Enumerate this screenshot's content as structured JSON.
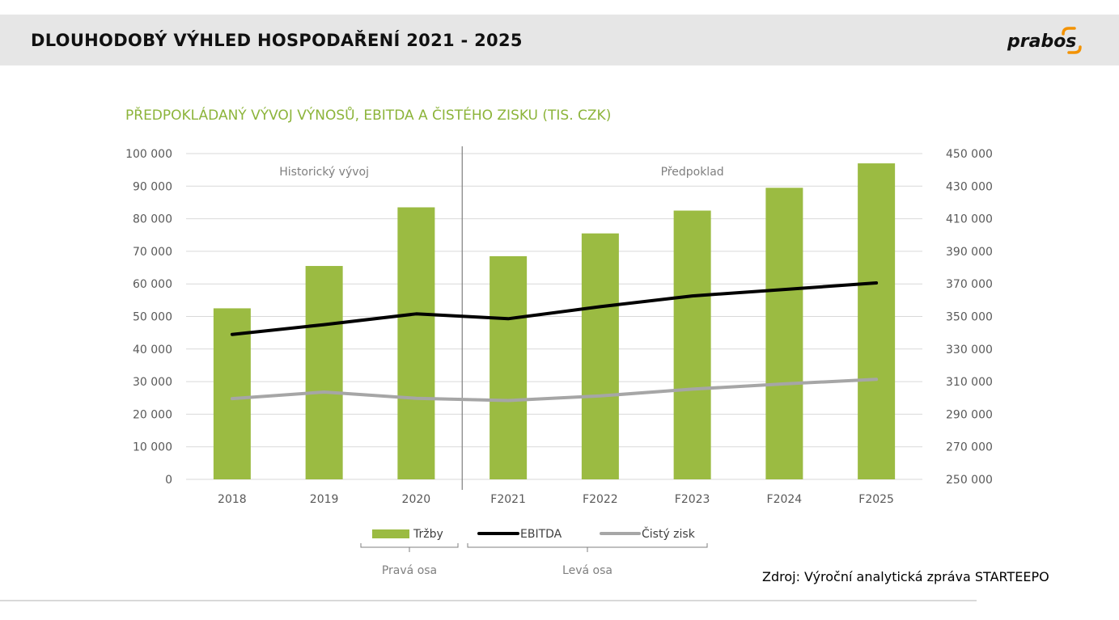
{
  "header": {
    "title": "DLOUHODOBÝ VÝHLED HOSPODAŘENÍ 2021 - 2025",
    "logo_text": "prabos",
    "background": "#e6e6e6"
  },
  "source_note": "Zdroj: Výroční analytická zpráva STARTEEPO",
  "chart_data": {
    "type": "bar",
    "title": "PŘEDPOKLÁDANÝ VÝVOJ VÝNOSŮ, EBITDA A ČISTÉHO ZISKU (TIS. CZK)",
    "categories": [
      "2018",
      "2019",
      "2020",
      "F2021",
      "F2022",
      "F2023",
      "F2024",
      "F2025"
    ],
    "left_axis": {
      "min": 0,
      "max": 100000,
      "step": 10000,
      "ticks": [
        "0",
        "10 000",
        "20 000",
        "30 000",
        "40 000",
        "50 000",
        "60 000",
        "70 000",
        "80 000",
        "90 000",
        "100 000"
      ]
    },
    "right_axis": {
      "min": 250000,
      "max": 450000,
      "step": 20000,
      "ticks": [
        "250 000",
        "270 000",
        "290 000",
        "310 000",
        "330 000",
        "350 000",
        "370 000",
        "390 000",
        "410 000",
        "430 000",
        "450 000"
      ]
    },
    "series": [
      {
        "name": "Tržby",
        "type": "bar",
        "axis": "right",
        "color": "#9bbb42",
        "values": [
          355000,
          381000,
          417000,
          387000,
          401000,
          415000,
          429000,
          444000
        ]
      },
      {
        "name": "EBITDA",
        "type": "line",
        "axis": "left",
        "color": "#000000",
        "values": [
          44500,
          47500,
          50800,
          49300,
          53000,
          56300,
          58300,
          60300
        ]
      },
      {
        "name": "Čistý zisk",
        "type": "line",
        "axis": "left",
        "color": "#a6a6a6",
        "values": [
          24800,
          26800,
          24900,
          24200,
          25600,
          27700,
          29300,
          30700
        ]
      }
    ],
    "regions": [
      {
        "label": "Historický vývoj",
        "from": "2018",
        "to": "2020"
      },
      {
        "label": "Předpoklad",
        "from": "F2021",
        "to": "F2025"
      }
    ],
    "axis_groups": [
      {
        "label": "Pravá osa",
        "series": [
          "Tržby"
        ]
      },
      {
        "label": "Levá osa",
        "series": [
          "EBITDA",
          "Čistý zisk"
        ]
      }
    ],
    "grid": true,
    "legend": "bottom"
  }
}
